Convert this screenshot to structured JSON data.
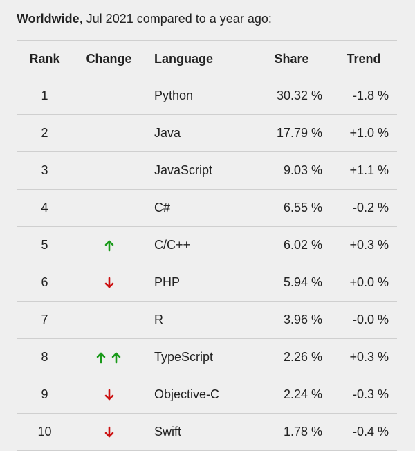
{
  "header": {
    "title_bold": "Worldwide",
    "title_rest": ", Jul 2021 compared to a year ago:"
  },
  "table": {
    "columns": [
      "Rank",
      "Change",
      "Language",
      "Share",
      "Trend"
    ],
    "rows": [
      {
        "rank": "1",
        "language": "Python",
        "share": "30.32 %",
        "trend": "-1.8 %"
      },
      {
        "rank": "2",
        "language": "Java",
        "share": "17.79 %",
        "trend": "+1.0 %"
      },
      {
        "rank": "3",
        "language": "JavaScript",
        "share": "9.03 %",
        "trend": "+1.1 %"
      },
      {
        "rank": "4",
        "language": "C#",
        "share": "6.55 %",
        "trend": "-0.2 %"
      },
      {
        "rank": "5",
        "language": "C/C++",
        "share": "6.02 %",
        "trend": "+0.3 %"
      },
      {
        "rank": "6",
        "language": "PHP",
        "share": "5.94 %",
        "trend": "+0.0 %"
      },
      {
        "rank": "7",
        "language": "R",
        "share": "3.96 %",
        "trend": "-0.0 %"
      },
      {
        "rank": "8",
        "language": "TypeScript",
        "share": "2.26 %",
        "trend": "+0.3 %"
      },
      {
        "rank": "9",
        "language": "Objective-C",
        "share": "2.24 %",
        "trend": "-0.3 %"
      },
      {
        "rank": "10",
        "language": "Swift",
        "share": "1.78 %",
        "trend": "-0.4 %"
      }
    ]
  }
}
